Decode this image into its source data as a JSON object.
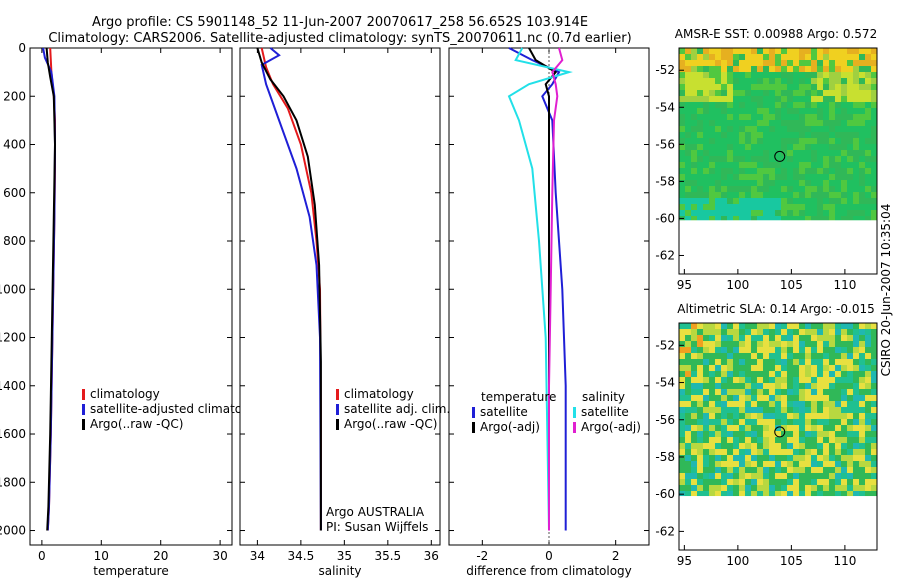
{
  "titles": {
    "line1": "Argo profile: CS 5901148_52 11-Jun-2007 20070617_258 56.652S 103.914E",
    "line2": "Climatology: CARS2006. Satellite-adjusted climatology: synTS_20070611.nc (0.7d earlier)"
  },
  "colors": {
    "climatology": "#e41a1c",
    "satellite": "#1f1fd6",
    "argo": "#000000",
    "sal_sat": "#22e0e8",
    "sal_argo": "#e020d0"
  },
  "chart_data": [
    {
      "type": "line",
      "panel": "temperature",
      "xlabel": "temperature",
      "ylabel": "",
      "xlim": [
        -2,
        32
      ],
      "ylim": [
        2060,
        0
      ],
      "xticks": [
        0,
        10,
        20,
        30
      ],
      "xtick_labels": [
        "0",
        "10",
        "20",
        "30"
      ],
      "yticks": [
        0,
        200,
        400,
        600,
        800,
        1000,
        1200,
        1400,
        1600,
        1800,
        2000
      ],
      "ytick_labels": [
        "0",
        "200",
        "400",
        "600",
        "800",
        "1000",
        "1200",
        "1400",
        "1600",
        "1800",
        "2000"
      ],
      "legend": [
        "climatology",
        "satellite-adjusted climatology",
        "Argo(..raw -QC)"
      ],
      "series": [
        {
          "name": "climatology",
          "color_key": "climatology",
          "x": [
            1.4,
            1.6,
            2.0,
            2.2,
            2.2,
            2.1,
            1.9,
            1.7,
            1.5,
            1.2,
            1.0
          ],
          "y": [
            0,
            100,
            200,
            300,
            500,
            700,
            1000,
            1300,
            1600,
            1900,
            2000
          ]
        },
        {
          "name": "satellite-adjusted climatology",
          "color_key": "satellite",
          "x": [
            0.2,
            0.5,
            1.6,
            2.1,
            2.2,
            2.1,
            1.9,
            1.7,
            1.5,
            1.2,
            1.0
          ],
          "y": [
            0,
            40,
            100,
            200,
            400,
            700,
            1000,
            1300,
            1600,
            1900,
            2000
          ]
        },
        {
          "name": "Argo(..raw -QC)",
          "color_key": "argo",
          "x": [
            0.8,
            1.0,
            1.4,
            2.0,
            2.2,
            2.0,
            1.8,
            1.6,
            1.4,
            1.1,
            0.9
          ],
          "y": [
            0,
            60,
            120,
            200,
            400,
            700,
            1000,
            1300,
            1600,
            1900,
            2000
          ]
        }
      ]
    },
    {
      "type": "line",
      "panel": "salinity",
      "xlabel": "salinity",
      "xlim": [
        33.8,
        36.1
      ],
      "ylim": [
        2060,
        0
      ],
      "xticks": [
        34,
        34.5,
        35,
        35.5,
        36
      ],
      "xtick_labels": [
        "34",
        "34.5",
        "35",
        "35.5",
        "36"
      ],
      "legend": [
        "climatology",
        "satellite adj. clim.",
        "Argo(..raw -QC)"
      ],
      "annotations": [
        "Argo AUSTRALIA",
        "PI: Susan Wijffels"
      ],
      "series": [
        {
          "name": "climatology",
          "color_key": "climatology",
          "x": [
            34.05,
            34.1,
            34.18,
            34.35,
            34.5,
            34.62,
            34.68,
            34.72,
            34.73,
            34.73
          ],
          "y": [
            0,
            80,
            150,
            250,
            400,
            600,
            800,
            1000,
            1500,
            2000
          ]
        },
        {
          "name": "satellite adj. clim.",
          "color_key": "satellite",
          "x": [
            34.15,
            34.25,
            34.05,
            34.1,
            34.25,
            34.45,
            34.6,
            34.68,
            34.72,
            34.73
          ],
          "y": [
            0,
            30,
            70,
            150,
            300,
            500,
            700,
            900,
            1200,
            2000
          ]
        },
        {
          "name": "Argo(..raw -QC)",
          "color_key": "argo",
          "x": [
            34.0,
            34.05,
            34.15,
            34.3,
            34.45,
            34.58,
            34.66,
            34.71,
            34.73,
            34.73
          ],
          "y": [
            0,
            60,
            130,
            200,
            300,
            450,
            650,
            900,
            1300,
            2000
          ]
        }
      ]
    },
    {
      "type": "line",
      "panel": "difference",
      "xlabel": "difference from climatology",
      "xlim": [
        -3,
        3
      ],
      "ylim": [
        2060,
        0
      ],
      "xticks": [
        -2,
        0,
        2
      ],
      "xtick_labels": [
        "-2",
        "0",
        "2"
      ],
      "legend": {
        "temperature_title": "temperature",
        "salinity_title": "salinity",
        "temperature": [
          "satellite",
          "Argo(-adj)"
        ],
        "salinity": [
          "satellite",
          "Argo(-adj)"
        ]
      },
      "series": [
        {
          "name": "temperature satellite",
          "color_key": "satellite",
          "x": [
            -1.2,
            -0.5,
            0.3,
            0.1,
            -0.2,
            0.1,
            0.2,
            0.4,
            0.5,
            0.5
          ],
          "y": [
            0,
            50,
            100,
            150,
            200,
            300,
            600,
            1000,
            1400,
            2000
          ]
        },
        {
          "name": "temperature Argo(-adj)",
          "color_key": "argo",
          "x": [
            -0.6,
            -0.4,
            0.2,
            -0.1,
            0.0,
            0.0,
            0.0,
            0.0,
            0.0,
            0.0
          ],
          "y": [
            0,
            50,
            100,
            150,
            200,
            300,
            600,
            1000,
            1400,
            2000
          ]
        },
        {
          "name": "salinity satellite",
          "color_key": "sal_sat",
          "x": [
            -0.8,
            -1.0,
            0.6,
            -0.6,
            -1.2,
            -0.9,
            -0.5,
            -0.3,
            -0.1,
            0.0
          ],
          "y": [
            0,
            50,
            100,
            150,
            200,
            300,
            500,
            800,
            1200,
            2000
          ]
        },
        {
          "name": "salinity Argo(-adj)",
          "color_key": "sal_argo",
          "x": [
            0.3,
            0.4,
            0.1,
            0.2,
            0.25,
            0.15,
            0.1,
            0.05,
            0.0,
            0.0
          ],
          "y": [
            0,
            50,
            100,
            150,
            200,
            300,
            600,
            1000,
            1400,
            2000
          ]
        }
      ]
    },
    {
      "type": "heatmap",
      "panel": "sst_map",
      "title": "AMSR-E SST: 0.00988 Argo: 0.572",
      "xlim": [
        94.5,
        113
      ],
      "ylim": [
        -63,
        -50.8
      ],
      "xticks": [
        95,
        100,
        105,
        110
      ],
      "xtick_labels": [
        "95",
        "100",
        "105",
        "110"
      ],
      "yticks": [
        -52,
        -54,
        -56,
        -58,
        -60,
        -62
      ],
      "ytick_labels": [
        "-52",
        "-54",
        "-56",
        "-58",
        "-60",
        "-62"
      ],
      "data_extent_south": -60.1,
      "marker": {
        "lon": 103.914,
        "lat": -56.652
      }
    },
    {
      "type": "heatmap",
      "panel": "sla_map",
      "title": "Altimetric SLA: 0.14 Argo: -0.015",
      "xlim": [
        94.5,
        113
      ],
      "ylim": [
        -63,
        -50.8
      ],
      "xticks": [
        95,
        100,
        105,
        110
      ],
      "xtick_labels": [
        "95",
        "100",
        "105",
        "110"
      ],
      "yticks": [
        -52,
        -54,
        -56,
        -58,
        -60,
        -62
      ],
      "ytick_labels": [
        "-52",
        "-54",
        "-56",
        "-58",
        "-60",
        "-62"
      ],
      "data_extent_south": -60.1,
      "marker": {
        "lon": 103.914,
        "lat": -56.652
      }
    }
  ],
  "side_stamp": "CSIRO 20-Jun-2007 10:35:04"
}
